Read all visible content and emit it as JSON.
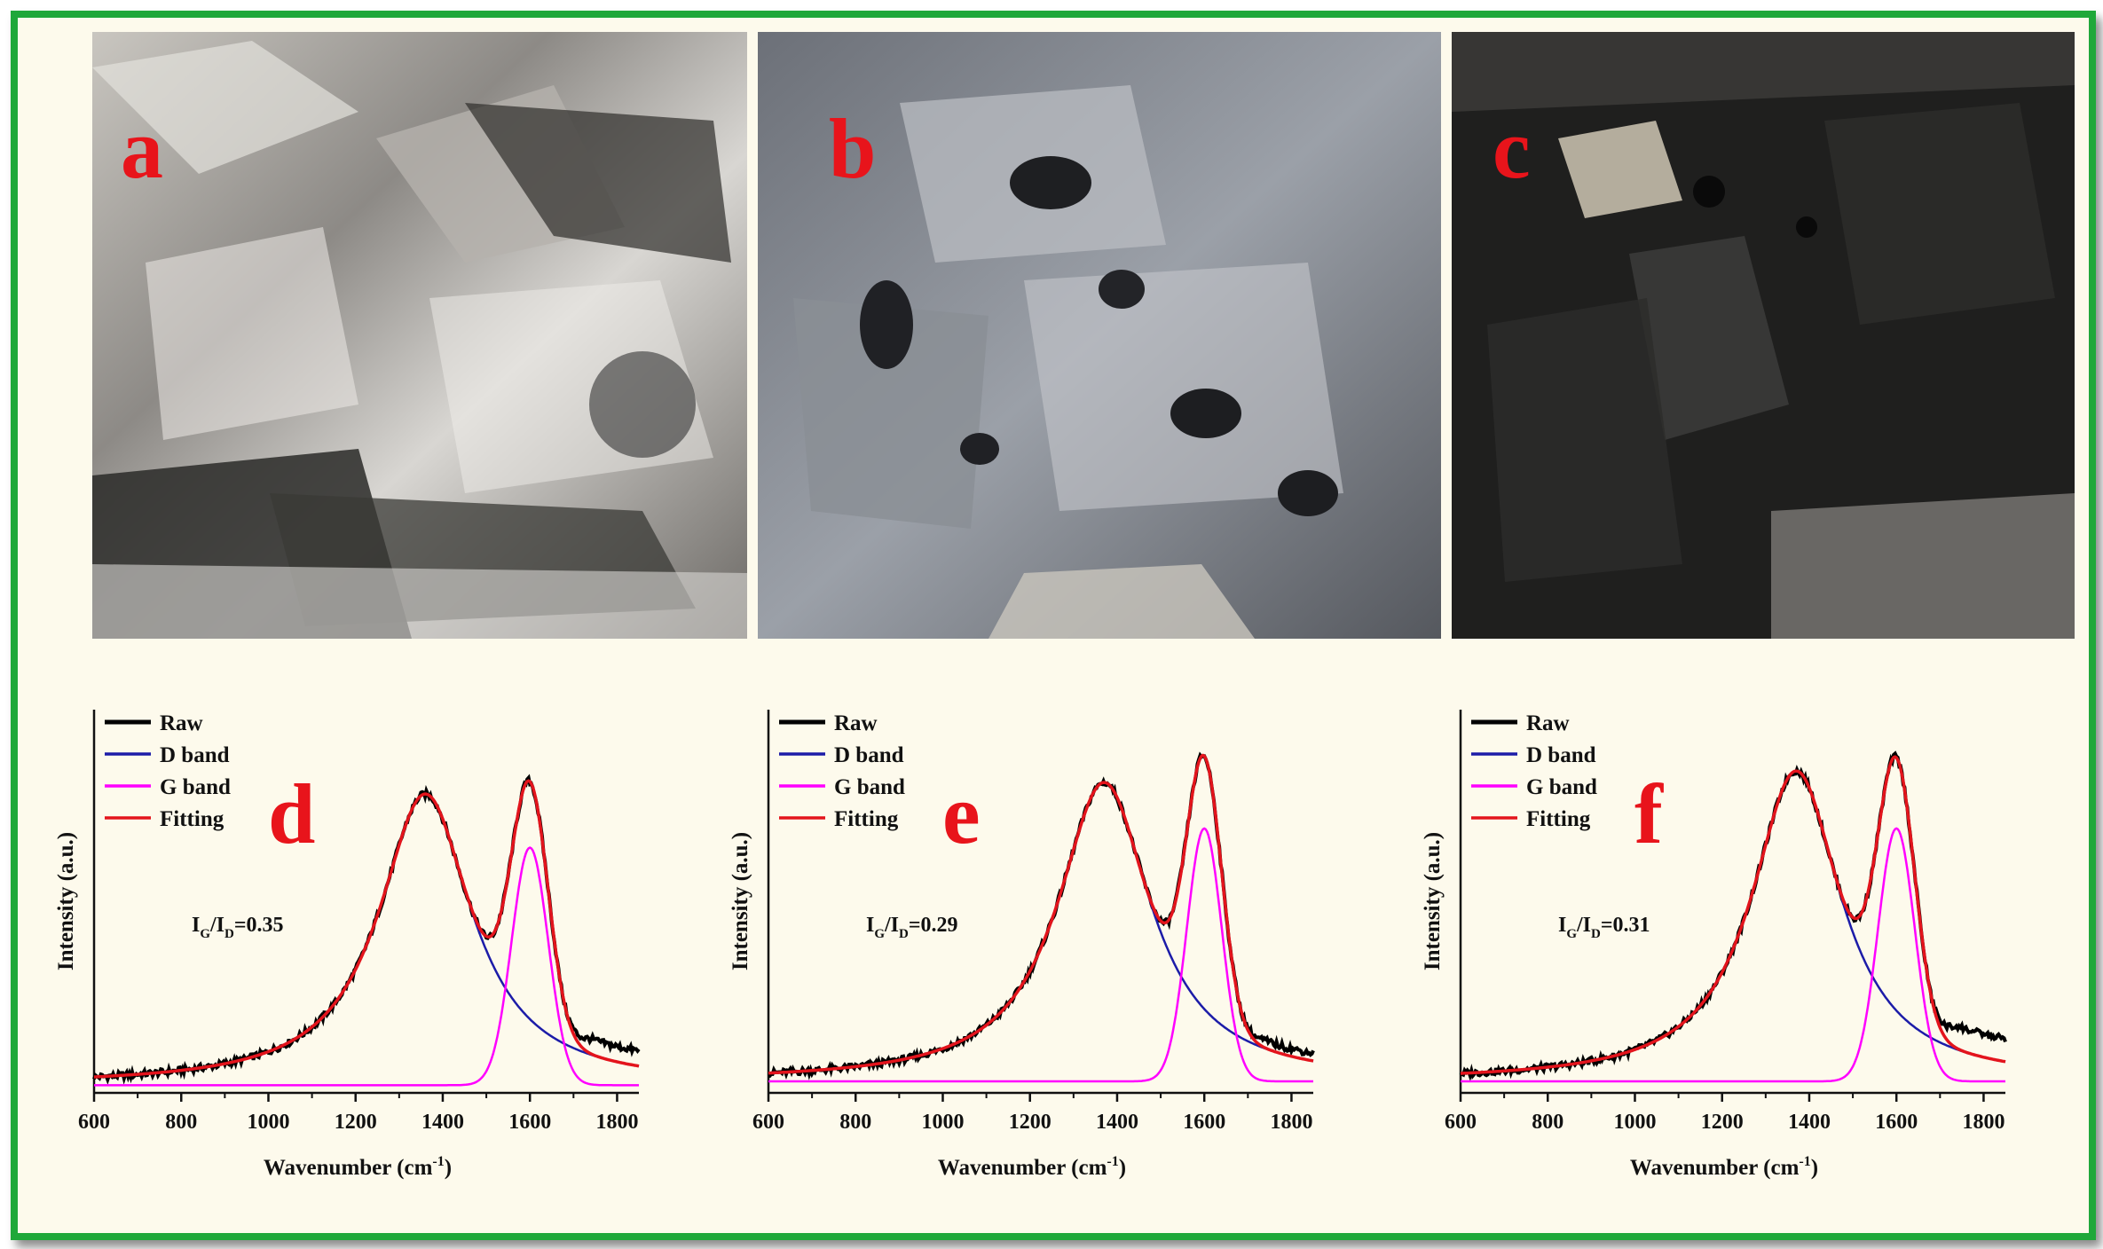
{
  "colors": {
    "frame": "#1fa83a",
    "background": "#fdfaec",
    "raw": "#000000",
    "d_band": "#1c1ca8",
    "g_band": "#ff00ff",
    "fitting": "#e3141c",
    "panel_letter": "#e8141b"
  },
  "photos": [
    {
      "letter": "a"
    },
    {
      "letter": "b"
    },
    {
      "letter": "c"
    }
  ],
  "chart_data": [
    {
      "type": "line",
      "panel": "d",
      "xlabel_main": "Wavenumber (cm",
      "xlabel_sup": "-1",
      "xlabel_end": ")",
      "ylabel": "Intensity (a.u.)",
      "xlim": [
        600,
        1850
      ],
      "xticks": [
        "600",
        "800",
        "1000",
        "1200",
        "1400",
        "1600",
        "1800"
      ],
      "legend": [
        "Raw",
        "D band",
        "G band",
        "Fitting"
      ],
      "ratio": {
        "I1": "I",
        "s1": "G",
        "slash": "/I",
        "s2": "D",
        "value": "=0.35"
      },
      "baseline": 0.02,
      "raw_offset": 0.04,
      "d_band": {
        "center": 1360,
        "width": 130,
        "amp": 0.76
      },
      "g_band": {
        "center": 1600,
        "width": 42,
        "amp": 0.62
      }
    },
    {
      "type": "line",
      "panel": "e",
      "xlabel_main": "Wavenumber (cm",
      "xlabel_sup": "-1",
      "xlabel_end": ")",
      "ylabel": "Intensity (a.u.)",
      "xlim": [
        600,
        1850
      ],
      "xticks": [
        "600",
        "800",
        "1000",
        "1200",
        "1400",
        "1600",
        "1800"
      ],
      "legend": [
        "Raw",
        "D band",
        "G band",
        "Fitting"
      ],
      "ratio": {
        "I1": "I",
        "s1": "G",
        "slash": "/I",
        "s2": "D",
        "value": "=0.29"
      },
      "baseline": 0.03,
      "raw_offset": 0.02,
      "d_band": {
        "center": 1370,
        "width": 130,
        "amp": 0.78
      },
      "g_band": {
        "center": 1600,
        "width": 40,
        "amp": 0.66
      }
    },
    {
      "type": "line",
      "panel": "f",
      "xlabel_main": "Wavenumber (cm",
      "xlabel_sup": "-1",
      "xlabel_end": ")",
      "ylabel": "Intensity (a.u.)",
      "xlim": [
        600,
        1850
      ],
      "xticks": [
        "600",
        "800",
        "1000",
        "1200",
        "1400",
        "1600",
        "1800"
      ],
      "legend": [
        "Raw",
        "D band",
        "G band",
        "Fitting"
      ],
      "ratio": {
        "I1": "I",
        "s1": "G",
        "slash": "/I",
        "s2": "D",
        "value": "=0.31"
      },
      "baseline": 0.03,
      "raw_offset": 0.06,
      "d_band": {
        "center": 1370,
        "width": 125,
        "amp": 0.81
      },
      "g_band": {
        "center": 1600,
        "width": 42,
        "amp": 0.66
      }
    }
  ]
}
